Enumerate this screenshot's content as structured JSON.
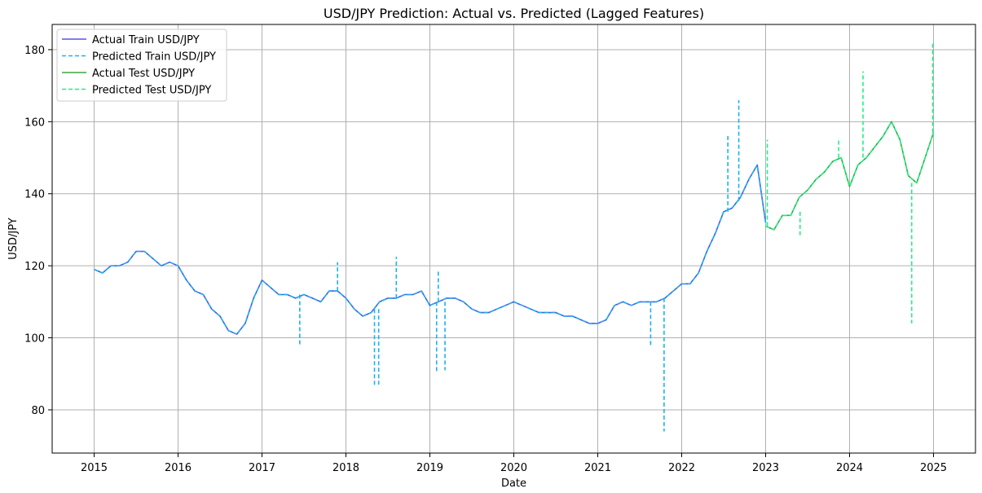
{
  "chart_data": {
    "type": "line",
    "title": "USD/JPY Prediction: Actual vs. Predicted (Lagged Features)",
    "xlabel": "Date",
    "ylabel": "USD/JPY",
    "xlim": [
      2014.5,
      2025.5
    ],
    "ylim": [
      68,
      187
    ],
    "xticks": [
      "2015",
      "2016",
      "2017",
      "2018",
      "2019",
      "2020",
      "2021",
      "2022",
      "2023",
      "2024",
      "2025"
    ],
    "yticks": [
      80,
      100,
      120,
      140,
      160,
      180
    ],
    "grid": true,
    "legend_position": "top-left",
    "series": [
      {
        "name": "Actual Train USD/JPY",
        "style": "solid",
        "color": "#5555e0",
        "x": [
          2015.0,
          2015.1,
          2015.2,
          2015.3,
          2015.4,
          2015.5,
          2015.6,
          2015.7,
          2015.8,
          2015.9,
          2016.0,
          2016.1,
          2016.2,
          2016.3,
          2016.4,
          2016.5,
          2016.6,
          2016.7,
          2016.8,
          2016.9,
          2017.0,
          2017.1,
          2017.2,
          2017.3,
          2017.4,
          2017.5,
          2017.6,
          2017.7,
          2017.8,
          2017.9,
          2018.0,
          2018.1,
          2018.2,
          2018.3,
          2018.4,
          2018.5,
          2018.6,
          2018.7,
          2018.8,
          2018.9,
          2019.0,
          2019.1,
          2019.2,
          2019.3,
          2019.4,
          2019.5,
          2019.6,
          2019.7,
          2019.8,
          2019.9,
          2020.0,
          2020.1,
          2020.2,
          2020.3,
          2020.4,
          2020.5,
          2020.6,
          2020.7,
          2020.8,
          2020.9,
          2021.0,
          2021.1,
          2021.2,
          2021.3,
          2021.4,
          2021.5,
          2021.6,
          2021.7,
          2021.8,
          2021.9,
          2022.0,
          2022.1,
          2022.2,
          2022.3,
          2022.4,
          2022.5,
          2022.6,
          2022.7,
          2022.8,
          2022.9,
          2023.0
        ],
        "y": [
          119,
          118,
          120,
          120,
          121,
          124,
          124,
          122,
          120,
          121,
          120,
          116,
          113,
          112,
          108,
          106,
          102,
          101,
          104,
          111,
          116,
          114,
          112,
          112,
          111,
          112,
          111,
          110,
          113,
          113,
          111,
          108,
          106,
          107,
          110,
          111,
          111,
          112,
          112,
          113,
          109,
          110,
          111,
          111,
          110,
          108,
          107,
          107,
          108,
          109,
          110,
          109,
          108,
          107,
          107,
          107,
          106,
          106,
          105,
          104,
          104,
          105,
          109,
          110,
          109,
          110,
          110,
          110,
          111,
          113,
          115,
          115,
          118,
          124,
          129,
          135,
          136,
          139,
          144,
          148,
          132
        ]
      },
      {
        "name": "Predicted Train USD/JPY",
        "style": "dashed",
        "color": "#1ab2ee",
        "x": [
          2015.0,
          2015.1,
          2015.2,
          2015.3,
          2015.4,
          2015.5,
          2015.6,
          2015.7,
          2015.8,
          2015.9,
          2016.0,
          2016.1,
          2016.2,
          2016.3,
          2016.4,
          2016.5,
          2016.6,
          2016.7,
          2016.8,
          2016.9,
          2017.0,
          2017.1,
          2017.2,
          2017.3,
          2017.4,
          2017.5,
          2017.6,
          2017.7,
          2017.8,
          2017.9,
          2018.0,
          2018.1,
          2018.2,
          2018.3,
          2018.4,
          2018.5,
          2018.6,
          2018.7,
          2018.8,
          2018.9,
          2019.0,
          2019.1,
          2019.2,
          2019.3,
          2019.4,
          2019.5,
          2019.6,
          2019.7,
          2019.8,
          2019.9,
          2020.0,
          2020.1,
          2020.2,
          2020.3,
          2020.4,
          2020.5,
          2020.6,
          2020.7,
          2020.8,
          2020.9,
          2021.0,
          2021.1,
          2021.2,
          2021.3,
          2021.4,
          2021.5,
          2021.6,
          2021.7,
          2021.8,
          2021.9,
          2022.0,
          2022.1,
          2022.2,
          2022.3,
          2022.4,
          2022.5,
          2022.6,
          2022.7,
          2022.8,
          2022.9,
          2023.0
        ],
        "y": [
          119,
          118,
          120,
          120,
          121,
          124,
          124,
          122,
          120,
          121,
          120,
          116,
          113,
          112,
          108,
          106,
          102,
          101,
          104,
          111,
          116,
          114,
          112,
          112,
          111,
          112,
          111,
          110,
          113,
          113,
          111,
          108,
          106,
          107,
          110,
          111,
          111,
          112,
          112,
          113,
          109,
          110,
          111,
          111,
          110,
          108,
          107,
          107,
          108,
          109,
          110,
          109,
          108,
          107,
          107,
          107,
          106,
          106,
          105,
          104,
          104,
          105,
          109,
          110,
          109,
          110,
          110,
          110,
          111,
          113,
          115,
          115,
          118,
          124,
          129,
          135,
          136,
          139,
          144,
          148,
          132
        ]
      },
      {
        "name": "Actual Test USD/JPY",
        "style": "solid",
        "color": "#3fa33f",
        "x": [
          2023.0,
          2023.1,
          2023.2,
          2023.3,
          2023.4,
          2023.5,
          2023.6,
          2023.7,
          2023.8,
          2023.9,
          2024.0,
          2024.1,
          2024.2,
          2024.3,
          2024.4,
          2024.5,
          2024.6,
          2024.7,
          2024.8,
          2024.9,
          2025.0
        ],
        "y": [
          131,
          130,
          134,
          134,
          139,
          141,
          144,
          146,
          149,
          150,
          142,
          148,
          150,
          153,
          156,
          160,
          155,
          145,
          143,
          150,
          157
        ]
      },
      {
        "name": "Predicted Test USD/JPY",
        "style": "dashed",
        "color": "#22ee88",
        "x": [
          2023.0,
          2023.1,
          2023.2,
          2023.3,
          2023.4,
          2023.5,
          2023.6,
          2023.7,
          2023.8,
          2023.9,
          2024.0,
          2024.1,
          2024.2,
          2024.3,
          2024.4,
          2024.5,
          2024.6,
          2024.7,
          2024.8,
          2024.9,
          2025.0
        ],
        "y": [
          131,
          130,
          134,
          134,
          139,
          141,
          144,
          146,
          149,
          150,
          142,
          148,
          150,
          153,
          156,
          160,
          155,
          145,
          143,
          150,
          157
        ]
      }
    ],
    "spikes": [
      {
        "series": "Predicted Train USD/JPY",
        "x": 2017.45,
        "from": 112,
        "to": 97.5
      },
      {
        "series": "Predicted Train USD/JPY",
        "x": 2017.9,
        "from": 113,
        "to": 121
      },
      {
        "series": "Predicted Train USD/JPY",
        "x": 2018.34,
        "from": 108,
        "to": 86.5
      },
      {
        "series": "Predicted Train USD/JPY",
        "x": 2018.39,
        "from": 108,
        "to": 87
      },
      {
        "series": "Predicted Train USD/JPY",
        "x": 2018.6,
        "from": 111,
        "to": 122.5
      },
      {
        "series": "Predicted Train USD/JPY",
        "x": 2019.08,
        "from": 110,
        "to": 90.5
      },
      {
        "series": "Predicted Train USD/JPY",
        "x": 2019.18,
        "from": 110,
        "to": 91
      },
      {
        "series": "Predicted Train USD/JPY",
        "x": 2019.1,
        "from": 110,
        "to": 118.5
      },
      {
        "series": "Predicted Train USD/JPY",
        "x": 2021.63,
        "from": 110,
        "to": 98
      },
      {
        "series": "Predicted Train USD/JPY",
        "x": 2021.79,
        "from": 111,
        "to": 74
      },
      {
        "series": "Predicted Train USD/JPY",
        "x": 2022.55,
        "from": 135,
        "to": 156
      },
      {
        "series": "Predicted Train USD/JPY",
        "x": 2022.68,
        "from": 138,
        "to": 166
      },
      {
        "series": "Predicted Test USD/JPY",
        "x": 2023.02,
        "from": 131,
        "to": 155
      },
      {
        "series": "Predicted Test USD/JPY",
        "x": 2023.41,
        "from": 135,
        "to": 128.5
      },
      {
        "series": "Predicted Test USD/JPY",
        "x": 2023.87,
        "from": 150,
        "to": 155.5
      },
      {
        "series": "Predicted Test USD/JPY",
        "x": 2024.16,
        "from": 150,
        "to": 174
      },
      {
        "series": "Predicted Test USD/JPY",
        "x": 2024.74,
        "from": 143,
        "to": 104
      },
      {
        "series": "Predicted Test USD/JPY",
        "x": 2024.99,
        "from": 157,
        "to": 182
      }
    ]
  }
}
